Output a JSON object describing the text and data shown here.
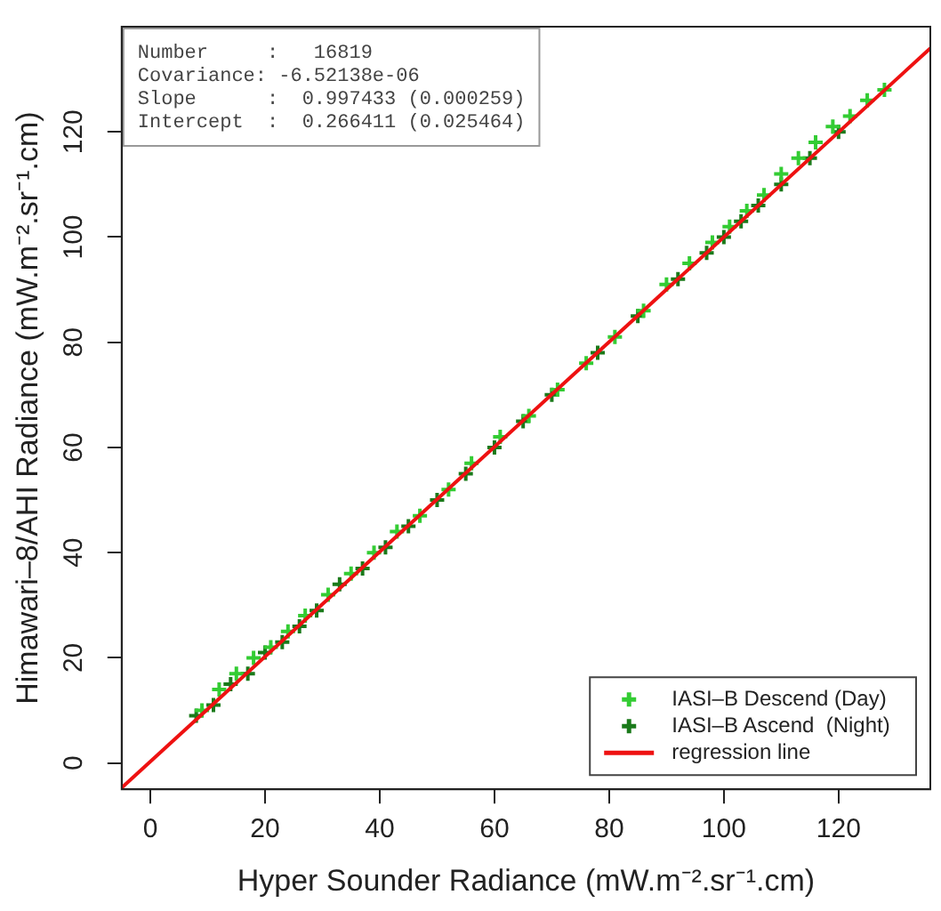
{
  "chart_data": {
    "type": "scatter",
    "xlabel": "Hyper Sounder Radiance (mW.m⁻².sr⁻¹.cm)",
    "ylabel": "Himawari–8/AHI Radiance (mW.m⁻².sr⁻¹.cm)",
    "xlim": [
      -5,
      136
    ],
    "ylim": [
      -5,
      140
    ],
    "xticks": [
      0,
      20,
      40,
      60,
      80,
      100,
      120
    ],
    "yticks": [
      0,
      20,
      40,
      60,
      80,
      100,
      120
    ],
    "grid": false,
    "legend": "bottom right",
    "marker": "cross",
    "annotations": [
      "Number     :   16819",
      "Covariance: -6.52138e-06",
      "Slope      :  0.997433 (0.000259)",
      "Intercept  :  0.266411 (0.025464)"
    ],
    "series": [
      {
        "name": "IASI–B Descend (Day)",
        "color": "#33cc33",
        "x": [
          9,
          12,
          15,
          18,
          21,
          24,
          27,
          31,
          35,
          39,
          43,
          47,
          52,
          56,
          61,
          66,
          71,
          76,
          81,
          86,
          90,
          94,
          98,
          101,
          104,
          107,
          110,
          113,
          116,
          119,
          122,
          125,
          128
        ],
        "values": [
          10,
          14,
          17,
          20,
          22,
          25,
          28,
          32,
          36,
          40,
          44,
          47,
          52,
          57,
          62,
          66,
          71,
          76,
          81,
          86,
          91,
          95,
          99,
          102,
          105,
          108,
          112,
          115,
          118,
          121,
          123,
          126,
          128
        ]
      },
      {
        "name": "IASI–B Ascend  (Night)",
        "color": "#1a7a1a",
        "x": [
          8,
          11,
          14,
          17,
          20,
          23,
          26,
          29,
          33,
          37,
          41,
          45,
          50,
          55,
          60,
          65,
          70,
          78,
          85,
          92,
          97,
          100,
          103,
          106,
          110,
          115,
          120
        ],
        "values": [
          9,
          11,
          15,
          17,
          21,
          23,
          26,
          29,
          34,
          37,
          41,
          45,
          50,
          55,
          60,
          65,
          70,
          78,
          85,
          92,
          97,
          100,
          103,
          106,
          110,
          115,
          120
        ]
      },
      {
        "name": "regression line",
        "type": "line",
        "marker": "none",
        "color": "#ee1111",
        "x": [
          -5,
          136
        ],
        "values": [
          -4.7,
          135.9
        ]
      }
    ]
  }
}
